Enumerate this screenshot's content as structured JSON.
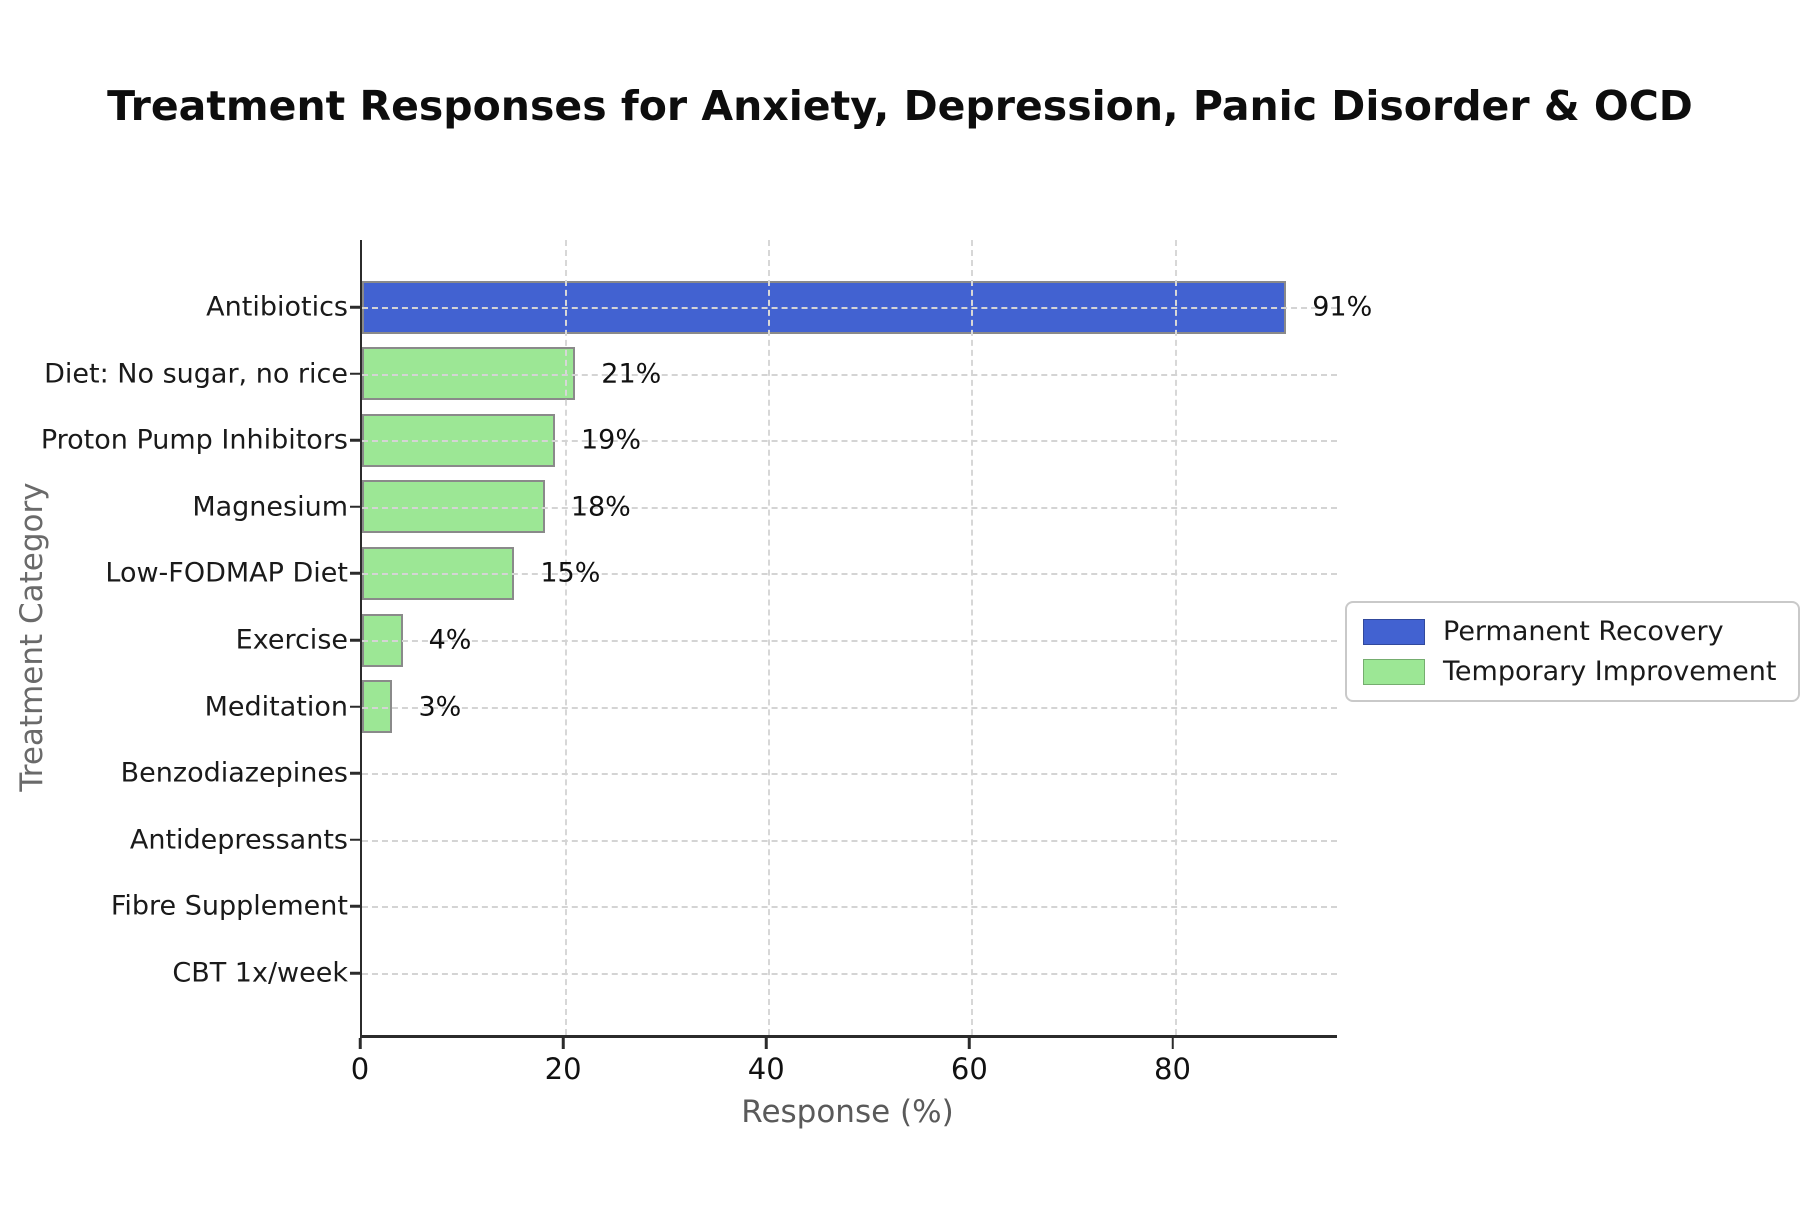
{
  "title": "Treatment Responses for Anxiety, Depression, Panic Disorder & OCD",
  "chart_data": {
    "type": "bar",
    "orientation": "horizontal",
    "title": "Treatment Responses for Anxiety, Depression, Panic Disorder & OCD",
    "xlabel": "Response (%)",
    "ylabel": "Treatment Category",
    "categories": [
      "Antibiotics",
      "Diet: No sugar, no rice",
      "Proton Pump Inhibitors",
      "Magnesium",
      "Low-FODMAP Diet",
      "Exercise",
      "Meditation",
      "Benzodiazepines",
      "Antidepressants",
      "Fibre Supplement",
      "CBT 1x/week"
    ],
    "values": [
      91,
      21,
      19,
      18,
      15,
      4,
      3,
      0,
      0,
      0,
      0
    ],
    "bar_value_labels": [
      "91%",
      "21%",
      "19%",
      "18%",
      "15%",
      "4%",
      "3%",
      "",
      "",
      "",
      ""
    ],
    "series_index_per_bar": [
      0,
      1,
      1,
      1,
      1,
      1,
      1,
      1,
      1,
      1,
      1
    ],
    "series": [
      {
        "name": "Permanent Recovery",
        "color": "#4262d1"
      },
      {
        "name": "Temporary Improvement",
        "color": "#9ce795"
      }
    ],
    "bar_edge_color": "#8a8a8a",
    "xticks": [
      0,
      20,
      40,
      60,
      80
    ],
    "xlim": [
      0,
      96
    ],
    "grid": "dashed, drawn over bars",
    "legend_position": "center right",
    "legend": [
      {
        "label": "Permanent Recovery",
        "color": "#4262d1"
      },
      {
        "label": "Temporary Improvement",
        "color": "#9ce795"
      }
    ]
  }
}
